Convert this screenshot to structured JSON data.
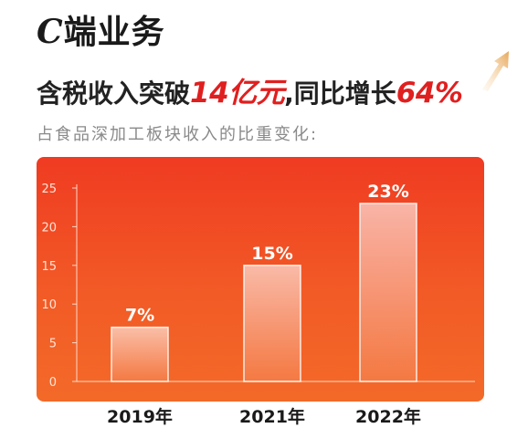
{
  "header": {
    "title_latin": "C",
    "title_rest": "端业务",
    "headline_pre": "含税收入突破",
    "headline_hl1": "14亿元",
    "headline_mid": ",同比增长",
    "headline_hl2": "64%",
    "subtitle": "占食品深加工板块收入的比重变化:"
  },
  "colors": {
    "accent_red": "#e01f1f",
    "panel_top": "#ef3b22",
    "panel_bottom": "#f36a28",
    "arrow_gold": "#e7a85a"
  },
  "chart_data": {
    "type": "bar",
    "categories": [
      "2019年",
      "2021年",
      "2022年"
    ],
    "values": [
      7,
      15,
      23
    ],
    "data_labels": [
      "7%",
      "15%",
      "23%"
    ],
    "yticks": [
      "0",
      "5",
      "10",
      "15",
      "20",
      "25"
    ],
    "ylim": [
      0,
      25
    ],
    "grid": false
  }
}
